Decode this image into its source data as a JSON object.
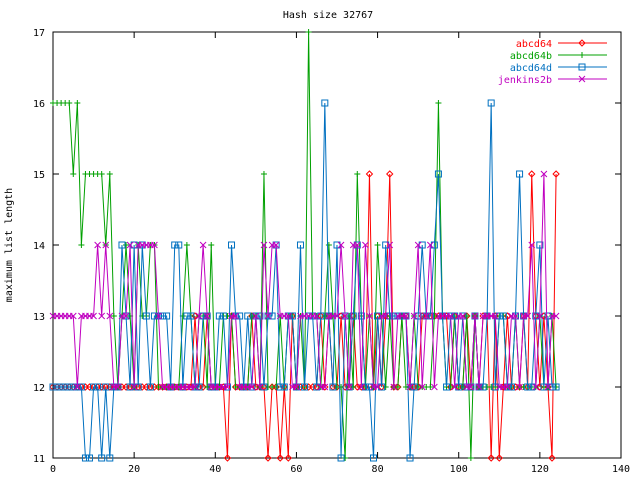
{
  "chart_data": {
    "type": "line",
    "title": "Hash size 32767",
    "xlabel": "",
    "ylabel": "maximum list length",
    "xlim": [
      0,
      140
    ],
    "ylim": [
      11,
      17
    ],
    "xticks": [
      0,
      20,
      40,
      60,
      80,
      100,
      120,
      140
    ],
    "yticks": [
      11,
      12,
      13,
      14,
      15,
      16,
      17
    ],
    "grid": false,
    "legend_position": "top-right",
    "series": [
      {
        "name": "abcd64",
        "color": "#ff0000",
        "marker": "diamond",
        "values": [
          12,
          12,
          12,
          12,
          12,
          12,
          12,
          12,
          12,
          12,
          12,
          12,
          12,
          12,
          12,
          12,
          12,
          12,
          12,
          12,
          12,
          12,
          12,
          12,
          12,
          12,
          12,
          12,
          12,
          12,
          12,
          12,
          12,
          12,
          12,
          13,
          12,
          12,
          13,
          12,
          12,
          12,
          12,
          11,
          13,
          12,
          12,
          12,
          12,
          13,
          12,
          12,
          12,
          11,
          12,
          12,
          11,
          12,
          11,
          13,
          12,
          12,
          12,
          12,
          12,
          12,
          13,
          12,
          13,
          12,
          12,
          13,
          12,
          12,
          13,
          12,
          12,
          12,
          15,
          12,
          13,
          12,
          13,
          15,
          12,
          12,
          13,
          13,
          12,
          12,
          12,
          13,
          13,
          13,
          13,
          13,
          13,
          13,
          12,
          13,
          12,
          12,
          13,
          12,
          13,
          12,
          13,
          13,
          11,
          13,
          11,
          12,
          13,
          12,
          12,
          12,
          13,
          12,
          15,
          13,
          12,
          13,
          12,
          11,
          15
        ]
      },
      {
        "name": "abcd64b",
        "color": "#00a000",
        "marker": "plus",
        "values": [
          16,
          16,
          16,
          16,
          16,
          15,
          16,
          14,
          15,
          15,
          15,
          15,
          15,
          14,
          15,
          13,
          12,
          13,
          14,
          13,
          12,
          14,
          13,
          13,
          14,
          14,
          12,
          12,
          12,
          12,
          12,
          12,
          13,
          14,
          13,
          12,
          13,
          13,
          12,
          14,
          12,
          12,
          13,
          13,
          13,
          12,
          12,
          12,
          12,
          13,
          13,
          12,
          15,
          12,
          12,
          12,
          13,
          12,
          13,
          13,
          12,
          13,
          12,
          17,
          13,
          13,
          12,
          13,
          14,
          13,
          12,
          12,
          11,
          13,
          12,
          15,
          13,
          12,
          13,
          12,
          14,
          13,
          12,
          13,
          12,
          12,
          13,
          12,
          12,
          13,
          12,
          12,
          12,
          12,
          13,
          16,
          13,
          12,
          12,
          13,
          12,
          12,
          13,
          11,
          13,
          12,
          12,
          12,
          12,
          12,
          13,
          13,
          12,
          12,
          13,
          12,
          12,
          12,
          12,
          12,
          13,
          12,
          12,
          13,
          12
        ]
      },
      {
        "name": "abcd64d",
        "color": "#0070c0",
        "marker": "square",
        "values": [
          12,
          12,
          12,
          12,
          12,
          12,
          12,
          12,
          11,
          11,
          12,
          12,
          11,
          12,
          11,
          12,
          12,
          14,
          13,
          12,
          14,
          12,
          14,
          13,
          12,
          13,
          13,
          13,
          13,
          12,
          14,
          14,
          12,
          13,
          13,
          12,
          12,
          13,
          13,
          12,
          12,
          13,
          13,
          12,
          14,
          13,
          13,
          12,
          13,
          12,
          13,
          13,
          12,
          13,
          13,
          14,
          12,
          12,
          13,
          13,
          12,
          14,
          12,
          13,
          13,
          12,
          13,
          16,
          13,
          12,
          14,
          11,
          13,
          12,
          13,
          14,
          13,
          12,
          12,
          11,
          13,
          12,
          14,
          13,
          13,
          13,
          13,
          13,
          11,
          12,
          13,
          14,
          13,
          13,
          14,
          15,
          13,
          12,
          13,
          13,
          12,
          13,
          12,
          12,
          13,
          12,
          12,
          13,
          16,
          12,
          13,
          13,
          12,
          12,
          13,
          15,
          13,
          12,
          12,
          13,
          14,
          12,
          13,
          12,
          12
        ]
      },
      {
        "name": "jenkins2b",
        "color": "#c000c0",
        "marker": "x",
        "values": [
          13,
          13,
          13,
          13,
          13,
          13,
          12,
          13,
          13,
          13,
          13,
          14,
          13,
          14,
          13,
          12,
          12,
          13,
          13,
          14,
          12,
          14,
          14,
          14,
          14,
          14,
          13,
          12,
          12,
          12,
          12,
          12,
          12,
          12,
          12,
          12,
          13,
          14,
          13,
          12,
          12,
          12,
          12,
          12,
          13,
          13,
          12,
          12,
          12,
          12,
          13,
          12,
          14,
          13,
          14,
          14,
          13,
          13,
          13,
          12,
          12,
          13,
          13,
          13,
          13,
          13,
          12,
          12,
          13,
          13,
          13,
          14,
          13,
          12,
          14,
          14,
          12,
          14,
          13,
          12,
          12,
          13,
          13,
          14,
          12,
          13,
          13,
          13,
          12,
          13,
          14,
          12,
          13,
          14,
          12,
          13,
          13,
          13,
          13,
          12,
          13,
          13,
          12,
          12,
          13,
          12,
          13,
          13,
          13,
          13,
          12,
          12,
          12,
          13,
          13,
          12,
          13,
          13,
          14,
          12,
          13,
          15,
          12,
          13,
          13
        ]
      }
    ]
  }
}
